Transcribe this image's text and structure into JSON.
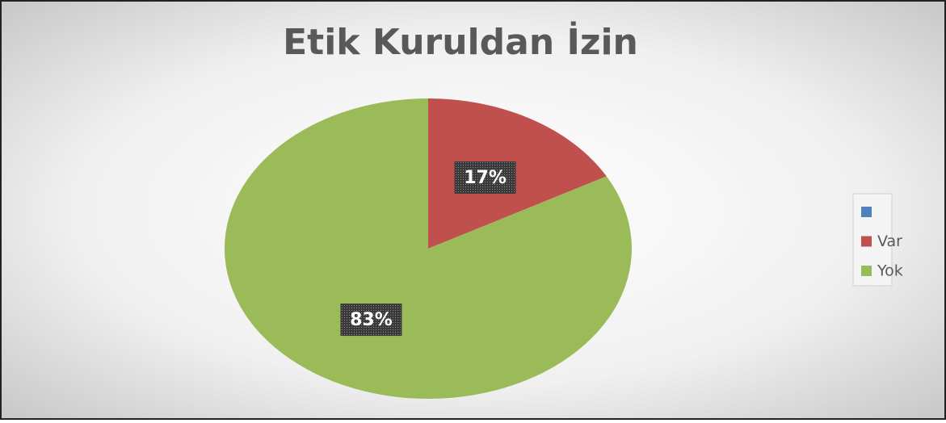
{
  "chart_data": {
    "type": "pie",
    "title": "Etik Kuruldan İzin",
    "categories": [
      null,
      "Var",
      "Yok"
    ],
    "values": [
      null,
      17,
      83
    ],
    "value_labels": [
      null,
      "17%",
      "83%"
    ],
    "colors": [
      "#4f81bd",
      "#c0504d",
      "#9bbb59"
    ],
    "legend": "right"
  }
}
